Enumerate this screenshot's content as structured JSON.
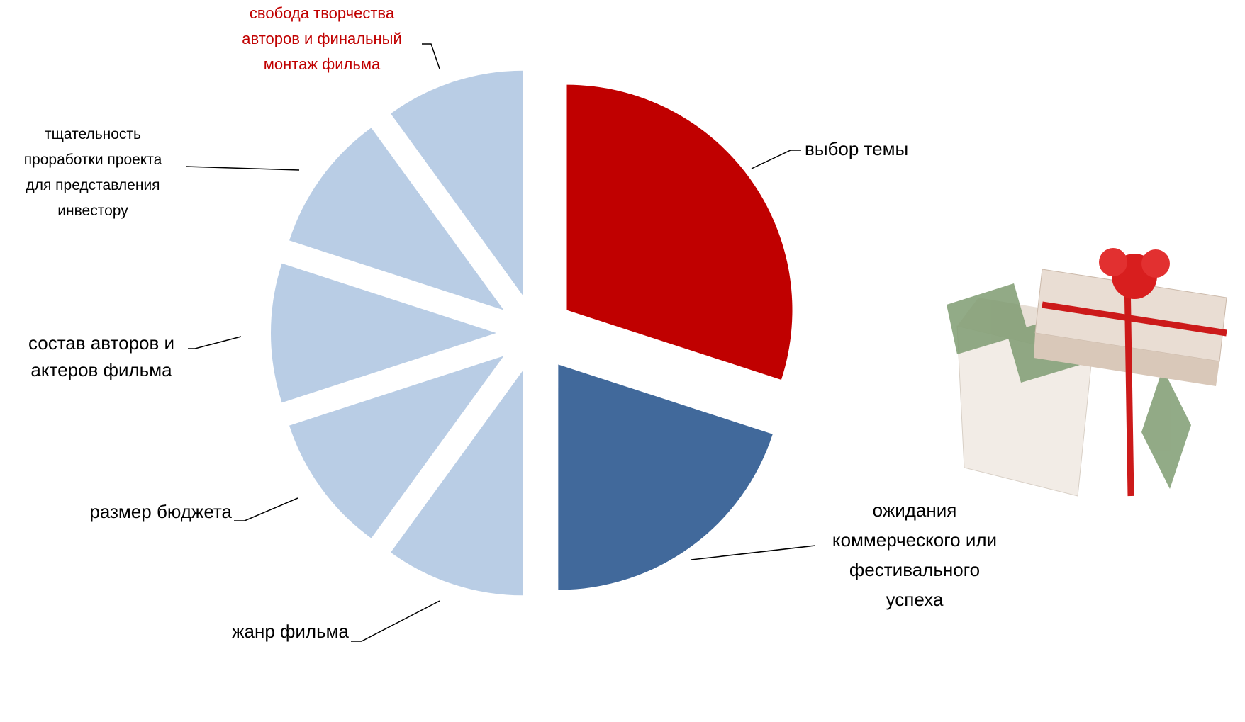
{
  "chart_data": {
    "type": "pie",
    "categories": [
      "выбор темы",
      "ожидания\nкоммерческого или\nфестивального\nуспеха",
      "жанр фильма",
      "размер бюджета",
      "состав авторов и\nактеров  фильма",
      "тщательность\nпроработки проекта\nдля представления\nинвестору",
      "свобода творчества\nавторов и финальный\nмонтаж фильма"
    ],
    "values": [
      30,
      20,
      10,
      10,
      10,
      10,
      10
    ],
    "colors": [
      "#c00000",
      "#41699b",
      "#b9cde5",
      "#b9cde5",
      "#b9cde5",
      "#b9cde5",
      "#b9cde5"
    ]
  }
}
